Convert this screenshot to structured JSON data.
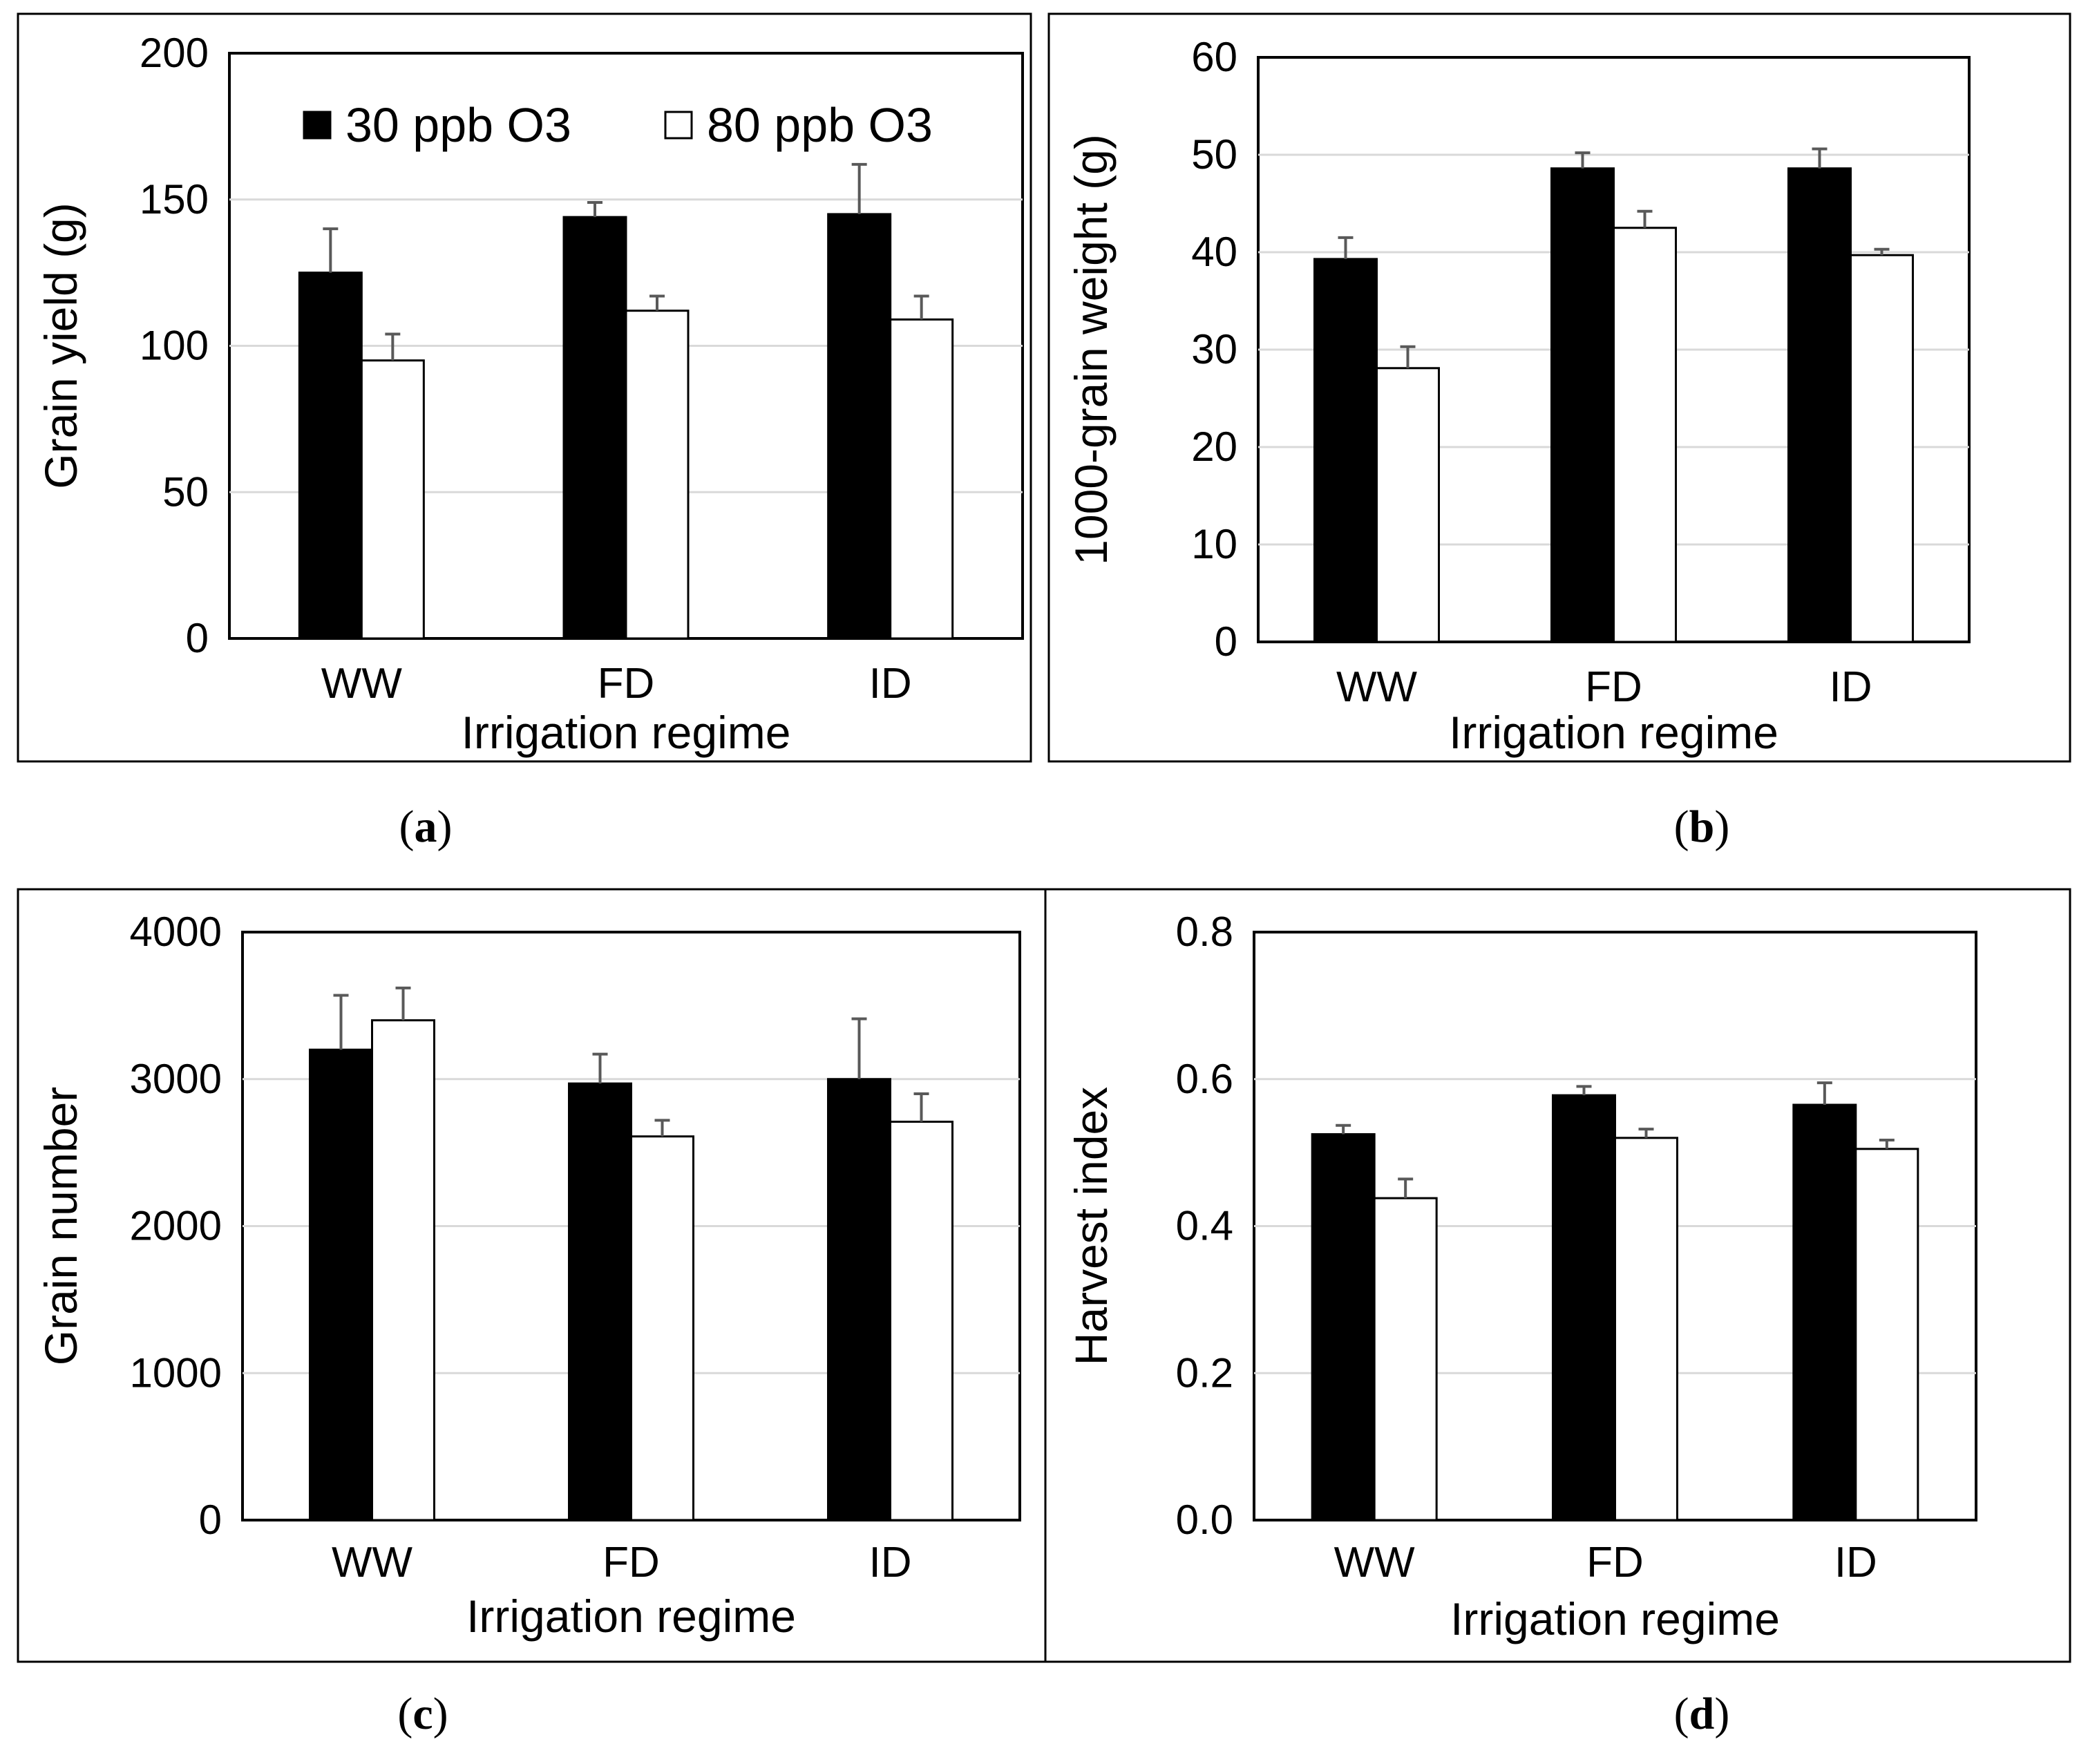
{
  "colors": {
    "series_1": "#000000",
    "series_2": "#ffffff",
    "grid": "#d9d9d9",
    "error_bar": "#595959"
  },
  "legend": [
    {
      "name": "30 ppb O3",
      "color": "#000000"
    },
    {
      "name": "80 ppb O3",
      "color": "#ffffff"
    }
  ],
  "chart_data": [
    {
      "id": "a",
      "type": "bar",
      "caption": {
        "open": "(",
        "letter": "a",
        "close": ")"
      },
      "title": "",
      "xlabel": "Irrigation regime",
      "ylabel": "Grain yield (g)",
      "categories": [
        "WW",
        "FD",
        "ID"
      ],
      "ylim": [
        0,
        200
      ],
      "yticks": [
        0,
        50,
        100,
        150,
        200
      ],
      "ytick_labels": [
        "0",
        "50",
        "100",
        "150",
        "200"
      ],
      "grid": true,
      "legend_placement": "top-inside",
      "series": [
        {
          "name": "30 ppb O3",
          "values": [
            125,
            144,
            145
          ],
          "errors": [
            15,
            5,
            17
          ]
        },
        {
          "name": "80 ppb O3",
          "values": [
            95,
            112,
            109
          ],
          "errors": [
            9,
            5,
            8
          ]
        }
      ]
    },
    {
      "id": "b",
      "type": "bar",
      "caption": {
        "open": "(",
        "letter": "b",
        "close": ")"
      },
      "title": "",
      "xlabel": "Irrigation regime",
      "ylabel": "1000-grain weight (g)",
      "categories": [
        "WW",
        "FD",
        "ID"
      ],
      "ylim": [
        0,
        60
      ],
      "yticks": [
        0,
        10,
        20,
        30,
        40,
        50,
        60
      ],
      "ytick_labels": [
        "0",
        "10",
        "20",
        "30",
        "40",
        "50",
        "60"
      ],
      "grid": true,
      "series": [
        {
          "name": "30 ppb O3",
          "values": [
            39.3,
            48.6,
            48.6
          ],
          "errors": [
            2.2,
            1.6,
            2.0
          ]
        },
        {
          "name": "80 ppb O3",
          "values": [
            28.1,
            42.5,
            39.7
          ],
          "errors": [
            2.2,
            1.7,
            0.6
          ]
        }
      ]
    },
    {
      "id": "c",
      "type": "bar",
      "caption": {
        "open": "(",
        "letter": "c",
        "close": ")"
      },
      "title": "",
      "xlabel": "Irrigation regime",
      "ylabel": "Grain number",
      "categories": [
        "WW",
        "FD",
        "ID"
      ],
      "ylim": [
        0,
        4000
      ],
      "yticks": [
        0,
        1000,
        2000,
        3000,
        4000
      ],
      "ytick_labels": [
        "0",
        "1000",
        "2000",
        "3000",
        "4000"
      ],
      "grid": true,
      "series": [
        {
          "name": "30 ppb O3",
          "values": [
            3200,
            2970,
            3000
          ],
          "errors": [
            370,
            200,
            410
          ]
        },
        {
          "name": "80 ppb O3",
          "values": [
            3400,
            2610,
            2710
          ],
          "errors": [
            220,
            110,
            190
          ]
        }
      ]
    },
    {
      "id": "d",
      "type": "bar",
      "caption": {
        "open": "(",
        "letter": "d",
        "close": ")"
      },
      "title": "",
      "xlabel": "Irrigation regime",
      "ylabel": "Harvest index",
      "categories": [
        "WW",
        "FD",
        "ID"
      ],
      "ylim": [
        0,
        0.8
      ],
      "yticks": [
        0,
        0.2,
        0.4,
        0.6,
        0.8
      ],
      "ytick_labels": [
        "0.0",
        "0.2",
        "0.4",
        "0.6",
        "0.8"
      ],
      "grid": true,
      "series": [
        {
          "name": "30 ppb O3",
          "values": [
            0.525,
            0.578,
            0.565
          ],
          "errors": [
            0.012,
            0.012,
            0.03
          ]
        },
        {
          "name": "80 ppb O3",
          "values": [
            0.438,
            0.52,
            0.505
          ],
          "errors": [
            0.026,
            0.012,
            0.012
          ]
        }
      ]
    }
  ]
}
